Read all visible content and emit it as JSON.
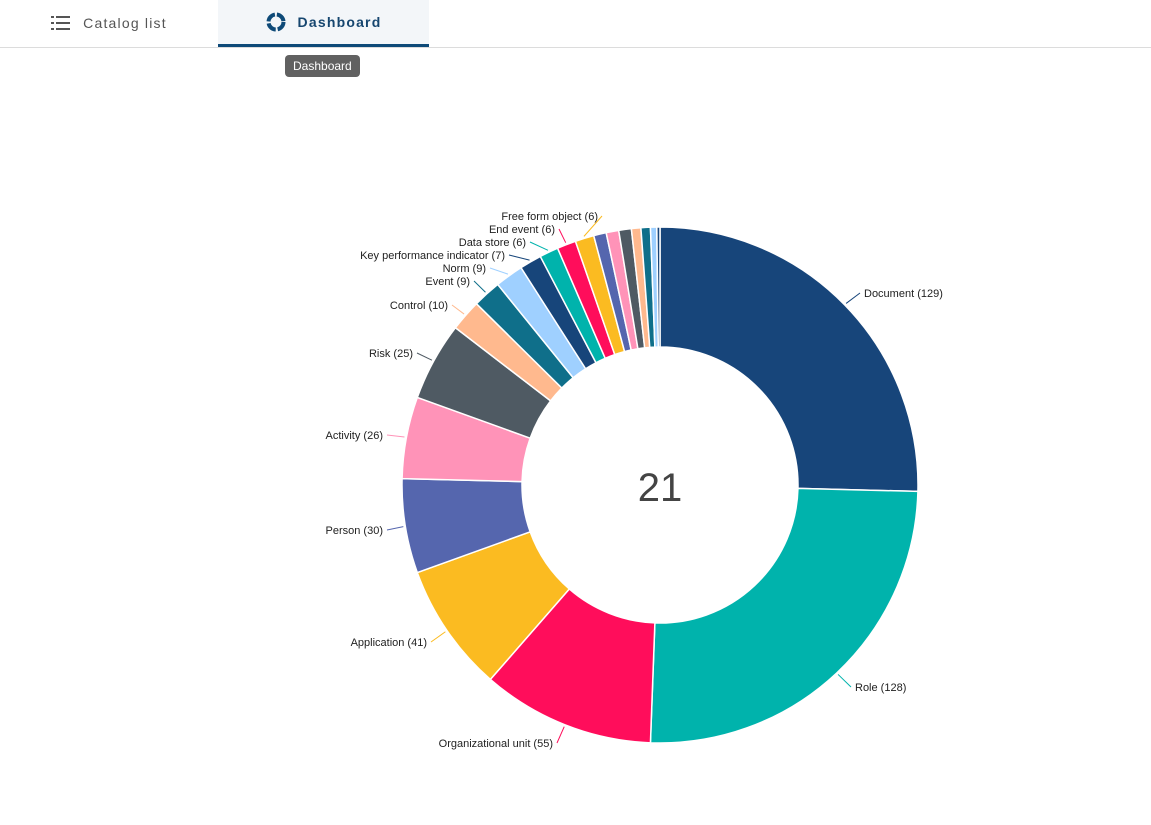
{
  "tabs": [
    {
      "label": "Catalog list",
      "icon": "list-icon",
      "active": false
    },
    {
      "label": "Dashboard",
      "icon": "donut-chart-icon",
      "active": true
    }
  ],
  "tooltip": "Dashboard",
  "chart_data": {
    "type": "pie",
    "donut": true,
    "center_value": "21",
    "slices": [
      {
        "label": "Document",
        "value": 129,
        "color": "#17457a"
      },
      {
        "label": "Role",
        "value": 128,
        "color": "#00b3ac"
      },
      {
        "label": "Organizational unit",
        "value": 55,
        "color": "#ff0d5b"
      },
      {
        "label": "Application",
        "value": 41,
        "color": "#fbbb21"
      },
      {
        "label": "Person",
        "value": 30,
        "color": "#5566ae"
      },
      {
        "label": "Activity",
        "value": 26,
        "color": "#ff93b8"
      },
      {
        "label": "Risk",
        "value": 25,
        "color": "#4f5a63"
      },
      {
        "label": "Control",
        "value": 10,
        "color": "#ffb98e"
      },
      {
        "label": "Event",
        "value": 9,
        "color": "#0f6f8a"
      },
      {
        "label": "Norm",
        "value": 9,
        "color": "#9fd0ff"
      },
      {
        "label": "Key performance indicator",
        "value": 7,
        "color": "#17457a"
      },
      {
        "label": "Data store",
        "value": 6,
        "color": "#00b3ac"
      },
      {
        "label": "End event",
        "value": 6,
        "color": "#ff0d5b"
      },
      {
        "label": "Free form object",
        "value": 6,
        "color": "#fbbb21"
      },
      {
        "label": "",
        "value": 4,
        "color": "#5566ae"
      },
      {
        "label": "",
        "value": 4,
        "color": "#ff93b8"
      },
      {
        "label": "",
        "value": 4,
        "color": "#4f5a63"
      },
      {
        "label": "",
        "value": 3,
        "color": "#ffb98e"
      },
      {
        "label": "",
        "value": 3,
        "color": "#0f6f8a"
      },
      {
        "label": "",
        "value": 2,
        "color": "#9fd0ff"
      },
      {
        "label": "",
        "value": 1,
        "color": "#17457a"
      }
    ]
  }
}
